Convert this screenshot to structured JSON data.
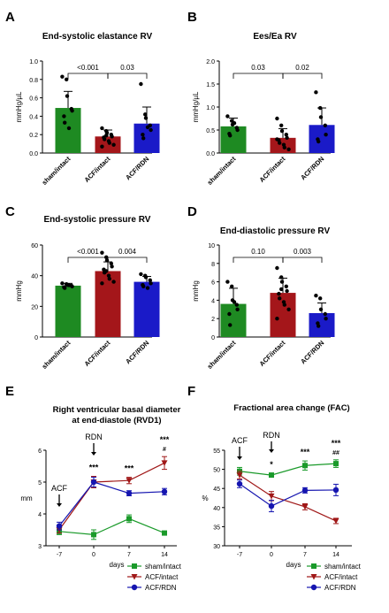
{
  "panels": [
    {
      "letter": "A",
      "chart_data": {
        "type": "bar",
        "title": "End-systolic elastance RV",
        "ylabel": "mmHg/µL",
        "ylim": [
          0,
          1.0
        ],
        "yticks": [
          0.0,
          0.2,
          0.4,
          0.6,
          0.8,
          1.0
        ],
        "ytick_labels": [
          "0.0",
          "0.2",
          "0.4",
          "0.6",
          "0.8",
          "1.0"
        ],
        "categories": [
          "sham/intact",
          "ACF/intact",
          "ACF/RDN"
        ],
        "values": [
          0.49,
          0.18,
          0.32
        ],
        "sd": [
          0.18,
          0.07,
          0.18
        ],
        "points": [
          [
            0.83,
            0.8,
            0.62,
            0.48,
            0.46,
            0.4,
            0.33,
            0.27
          ],
          [
            0.27,
            0.24,
            0.22,
            0.2,
            0.18,
            0.17,
            0.15,
            0.13,
            0.11,
            0.09,
            0.07,
            0.19
          ],
          [
            0.75,
            0.42,
            0.38,
            0.3,
            0.25,
            0.2,
            0.16,
            0.28
          ]
        ],
        "comparisons": [
          {
            "from": 0,
            "to": 1,
            "label": "<0.001"
          },
          {
            "from": 1,
            "to": 2,
            "label": "0.03"
          }
        ]
      }
    },
    {
      "letter": "B",
      "chart_data": {
        "type": "bar",
        "title": "Ees/Ea RV",
        "ylabel": "mmHg/µL",
        "ylim": [
          0,
          2.0
        ],
        "yticks": [
          0.0,
          0.5,
          1.0,
          1.5,
          2.0
        ],
        "ytick_labels": [
          "0.0",
          "0.5",
          "1.0",
          "1.5",
          "2.0"
        ],
        "categories": [
          "sham/intact",
          "ACF/intact",
          "ACF/RDN"
        ],
        "values": [
          0.58,
          0.33,
          0.61
        ],
        "sd": [
          0.18,
          0.2,
          0.37
        ],
        "points": [
          [
            0.8,
            0.7,
            0.62,
            0.55,
            0.5,
            0.42,
            0.38,
            0.65
          ],
          [
            0.75,
            0.6,
            0.48,
            0.4,
            0.33,
            0.28,
            0.22,
            0.18,
            0.12,
            0.08,
            0.3
          ],
          [
            1.32,
            0.98,
            0.78,
            0.6,
            0.4,
            0.3,
            0.25
          ]
        ],
        "comparisons": [
          {
            "from": 0,
            "to": 1,
            "label": "0.03"
          },
          {
            "from": 1,
            "to": 2,
            "label": "0.02"
          }
        ]
      }
    },
    {
      "letter": "C",
      "chart_data": {
        "type": "bar",
        "title": "End-systolic pressure RV",
        "ylabel": "mmHg",
        "ylim": [
          0,
          60
        ],
        "yticks": [
          0,
          20,
          40,
          60
        ],
        "ytick_labels": [
          "0",
          "20",
          "40",
          "60"
        ],
        "categories": [
          "sham/intact",
          "ACF/intact",
          "ACF/RDN"
        ],
        "values": [
          33.5,
          43,
          36
        ],
        "sd": [
          1.5,
          6,
          3.5
        ],
        "points": [
          [
            35,
            34.5,
            34,
            33.5,
            33,
            32.5,
            32,
            33.8
          ],
          [
            55,
            52,
            50,
            48,
            46,
            44,
            42,
            40,
            38,
            36,
            35,
            43
          ],
          [
            41,
            40,
            39,
            37,
            35,
            34,
            33,
            32
          ]
        ],
        "comparisons": [
          {
            "from": 0,
            "to": 1,
            "label": "<0.001"
          },
          {
            "from": 1,
            "to": 2,
            "label": "0.004"
          }
        ]
      }
    },
    {
      "letter": "D",
      "chart_data": {
        "type": "bar",
        "title": "End-diastolic pressure RV",
        "ylabel": "mmHg",
        "ylim": [
          0,
          10
        ],
        "yticks": [
          0,
          2,
          4,
          6,
          8,
          10
        ],
        "ytick_labels": [
          "0",
          "2",
          "4",
          "6",
          "8",
          "10"
        ],
        "categories": [
          "sham/intact",
          "ACF/intact",
          "ACF/RDN"
        ],
        "values": [
          3.6,
          4.8,
          2.6
        ],
        "sd": [
          1.7,
          1.6,
          1.1
        ],
        "points": [
          [
            6.0,
            5.5,
            4.0,
            3.5,
            3.0,
            2.5,
            1.3,
            3.8
          ],
          [
            7.5,
            6.5,
            6.0,
            5.5,
            5.0,
            4.7,
            4.2,
            3.8,
            3.5,
            3.0,
            2.0,
            5.2
          ],
          [
            4.5,
            4.2,
            3.0,
            2.5,
            2.0,
            1.5,
            1.2
          ]
        ],
        "comparisons": [
          {
            "from": 0,
            "to": 1,
            "label": "0.10"
          },
          {
            "from": 1,
            "to": 2,
            "label": "0.003"
          }
        ]
      }
    },
    {
      "letter": "E",
      "chart_data": {
        "type": "line",
        "title": "Right ventricular basal diameter",
        "subtitle": "at end-diastole (RVD1)",
        "ylabel": "mm",
        "xlabel": "days",
        "x": [
          -7,
          0,
          7,
          14
        ],
        "xtick_labels": [
          "-7",
          "0",
          "7",
          "14"
        ],
        "ylim": [
          3,
          6
        ],
        "yticks": [
          3,
          4,
          5,
          6
        ],
        "ytick_labels": [
          "3",
          "4",
          "5",
          "6"
        ],
        "series": [
          {
            "name": "sham/intact",
            "color": "#1a9a2a",
            "marker": "square",
            "values": [
              3.45,
              3.35,
              3.85,
              3.4
            ],
            "sd": [
              0.1,
              0.15,
              0.12,
              0.05
            ]
          },
          {
            "name": "ACF/intact",
            "color": "#a01818",
            "marker": "triangle-down",
            "values": [
              3.5,
              5.0,
              5.05,
              5.6
            ],
            "sd": [
              0.1,
              0.18,
              0.1,
              0.2
            ]
          },
          {
            "name": "ACF/RDN",
            "color": "#1515b0",
            "marker": "circle",
            "values": [
              3.62,
              5.0,
              4.65,
              4.7
            ],
            "sd": [
              0.12,
              0.15,
              0.08,
              0.1
            ]
          }
        ],
        "events": [
          {
            "x": -7,
            "label": "ACF"
          },
          {
            "x": 0,
            "label": "RDN"
          }
        ],
        "significance": [
          {
            "x": 0,
            "label": "***"
          },
          {
            "x": 7,
            "label": "***"
          },
          {
            "x": 14,
            "label": "***"
          },
          {
            "x": 14,
            "label": "#"
          }
        ],
        "legend": "bottom-right"
      }
    },
    {
      "letter": "F",
      "chart_data": {
        "type": "line",
        "title": "Fractional area change (FAC)",
        "ylabel": "%",
        "xlabel": "days",
        "x": [
          -7,
          0,
          7,
          14
        ],
        "xtick_labels": [
          "-7",
          "0",
          "7",
          "14"
        ],
        "ylim": [
          30,
          55
        ],
        "yticks": [
          30,
          35,
          40,
          45,
          50,
          55
        ],
        "ytick_labels": [
          "30",
          "35",
          "40",
          "45",
          "50",
          "55"
        ],
        "series": [
          {
            "name": "sham/intact",
            "color": "#1a9a2a",
            "marker": "square",
            "values": [
              49.5,
              48.5,
              51,
              51.5
            ],
            "sd": [
              1,
              0.5,
              1.2,
              1
            ]
          },
          {
            "name": "ACF/intact",
            "color": "#a01818",
            "marker": "triangle-down",
            "values": [
              48.5,
              43,
              40.2,
              36.5
            ],
            "sd": [
              1,
              1.2,
              0.8,
              0.7
            ]
          },
          {
            "name": "ACF/RDN",
            "color": "#1515b0",
            "marker": "circle",
            "values": [
              46.2,
              40.4,
              44.5,
              44.6
            ],
            "sd": [
              1,
              1.5,
              0.7,
              1.5
            ]
          }
        ],
        "events": [
          {
            "x": -7,
            "label": "ACF"
          },
          {
            "x": 0,
            "label": "RDN"
          }
        ],
        "significance": [
          {
            "x": 0,
            "label": "*"
          },
          {
            "x": 7,
            "label": "***"
          },
          {
            "x": 14,
            "label": "***"
          },
          {
            "x": 14,
            "label": "##"
          }
        ],
        "legend": "bottom-right"
      }
    }
  ],
  "bar_colors": [
    "#1e8a22",
    "#a4161a",
    "#1a1ac8"
  ]
}
